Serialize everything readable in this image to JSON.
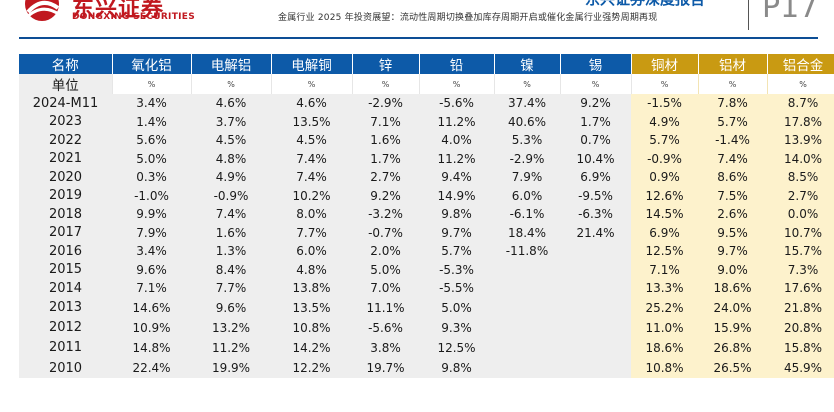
{
  "header": {
    "logo_cn": "东兴证券",
    "logo_en": "DONGXING SECURITIES",
    "report_title": "东兴证券深度报告",
    "subtitle": "金属行业 2025 年投资展望：流动性周期切换叠加库存周期开启或催化金属行业强势周期再现",
    "page": "P17",
    "logo_color": "#c0181f",
    "title_color": "#0d5aa8"
  },
  "table": {
    "header_colors": {
      "metals": "#0d5aa8",
      "processed": "#c99a12",
      "processed_bg": "#fdf2cc"
    },
    "columns": [
      "名称",
      "氧化铝",
      "电解铝",
      "电解铜",
      "锌",
      "铅",
      "镍",
      "锡",
      "铜材",
      "铝材",
      "铝合金"
    ],
    "unit_label": "单位",
    "units": [
      "%",
      "%",
      "%",
      "%",
      "%",
      "%",
      "%",
      "%",
      "%",
      "%"
    ],
    "rows": [
      {
        "year": "2024-M11",
        "values": [
          "3.4%",
          "4.6%",
          "4.6%",
          "-2.9%",
          "-5.6%",
          "37.4%",
          "9.2%",
          "-1.5%",
          "7.8%",
          "8.7%"
        ]
      },
      {
        "year": "2023",
        "values": [
          "1.4%",
          "3.7%",
          "13.5%",
          "7.1%",
          "11.2%",
          "40.6%",
          "1.7%",
          "4.9%",
          "5.7%",
          "17.8%"
        ]
      },
      {
        "year": "2022",
        "values": [
          "5.6%",
          "4.5%",
          "4.5%",
          "1.6%",
          "4.0%",
          "5.3%",
          "0.7%",
          "5.7%",
          "-1.4%",
          "13.9%"
        ]
      },
      {
        "year": "2021",
        "values": [
          "5.0%",
          "4.8%",
          "7.4%",
          "1.7%",
          "11.2%",
          "-2.9%",
          "10.4%",
          "-0.9%",
          "7.4%",
          "14.0%"
        ]
      },
      {
        "year": "2020",
        "values": [
          "0.3%",
          "4.9%",
          "7.4%",
          "2.7%",
          "9.4%",
          "7.9%",
          "6.9%",
          "0.9%",
          "8.6%",
          "8.5%"
        ]
      },
      {
        "year": "2019",
        "values": [
          "-1.0%",
          "-0.9%",
          "10.2%",
          "9.2%",
          "14.9%",
          "6.0%",
          "-9.5%",
          "12.6%",
          "7.5%",
          "2.7%"
        ]
      },
      {
        "year": "2018",
        "values": [
          "9.9%",
          "7.4%",
          "8.0%",
          "-3.2%",
          "9.8%",
          "-6.1%",
          "-6.3%",
          "14.5%",
          "2.6%",
          "0.0%"
        ]
      },
      {
        "year": "2017",
        "values": [
          "7.9%",
          "1.6%",
          "7.7%",
          "-0.7%",
          "9.7%",
          "18.4%",
          "21.4%",
          "6.9%",
          "9.5%",
          "10.7%"
        ]
      },
      {
        "year": "2016",
        "values": [
          "3.4%",
          "1.3%",
          "6.0%",
          "2.0%",
          "5.7%",
          "-11.8%",
          "",
          "12.5%",
          "9.7%",
          "15.7%"
        ]
      },
      {
        "year": "2015",
        "values": [
          "9.6%",
          "8.4%",
          "4.8%",
          "5.0%",
          "-5.3%",
          "",
          "",
          "7.1%",
          "9.0%",
          "7.3%"
        ]
      },
      {
        "year": "2014",
        "values": [
          "7.1%",
          "7.7%",
          "13.8%",
          "7.0%",
          "-5.5%",
          "",
          "",
          "13.3%",
          "18.6%",
          "17.6%"
        ]
      },
      {
        "year": "2013",
        "values": [
          "14.6%",
          "9.6%",
          "13.5%",
          "11.1%",
          "5.0%",
          "",
          "",
          "25.2%",
          "24.0%",
          "21.8%"
        ]
      },
      {
        "year": "2012",
        "values": [
          "10.9%",
          "13.2%",
          "10.8%",
          "-5.6%",
          "9.3%",
          "",
          "",
          "11.0%",
          "15.9%",
          "20.8%"
        ]
      },
      {
        "year": "2011",
        "values": [
          "14.8%",
          "11.2%",
          "14.2%",
          "3.8%",
          "12.5%",
          "",
          "",
          "18.6%",
          "26.8%",
          "15.8%"
        ]
      },
      {
        "year": "2010",
        "values": [
          "22.4%",
          "19.9%",
          "12.2%",
          "19.7%",
          "9.8%",
          "",
          "",
          "10.8%",
          "26.5%",
          "45.9%"
        ]
      }
    ]
  }
}
